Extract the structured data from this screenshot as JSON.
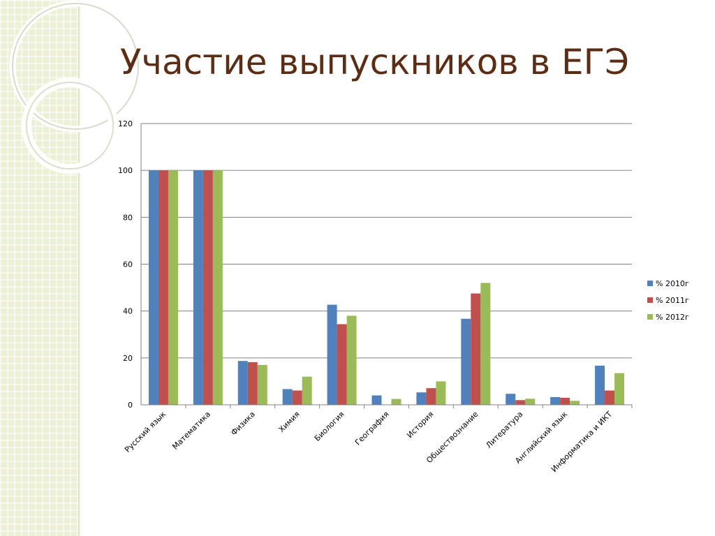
{
  "slide": {
    "title": "Участие выпускников в ЕГЭ"
  },
  "colors": {
    "series_2010": "#4f81bd",
    "series_2011": "#c0504d",
    "series_2012": "#9bbb59",
    "title": "#5b2d14",
    "gridline": "#808080"
  },
  "chart_data": {
    "type": "bar",
    "title": "",
    "xlabel": "",
    "ylabel": "",
    "ylim": [
      0,
      120
    ],
    "yticks": [
      "0",
      "20",
      "40",
      "60",
      "80",
      "100",
      "120"
    ],
    "grid": true,
    "legend_position": "right",
    "categories": [
      "Русский язык",
      "Математика",
      "Физика",
      "Химия",
      "Биология",
      "География",
      "История",
      "Обществознание",
      "Литература",
      "Английский язык",
      "Информатика и ИКТ"
    ],
    "series": [
      {
        "name": "% 2010г",
        "values": [
          100,
          100,
          18.7,
          6.7,
          42.7,
          4.0,
          5.3,
          36.7,
          4.7,
          3.3,
          16.7
        ]
      },
      {
        "name": "% 2011г",
        "values": [
          100,
          100,
          18.2,
          6.1,
          34.4,
          0,
          7.1,
          47.5,
          2.0,
          3.0,
          6.1
        ]
      },
      {
        "name": "% 2012г",
        "values": [
          100,
          100,
          17.0,
          12.0,
          38.0,
          2.5,
          10.0,
          52.0,
          2.6,
          1.7,
          13.5
        ]
      }
    ]
  }
}
